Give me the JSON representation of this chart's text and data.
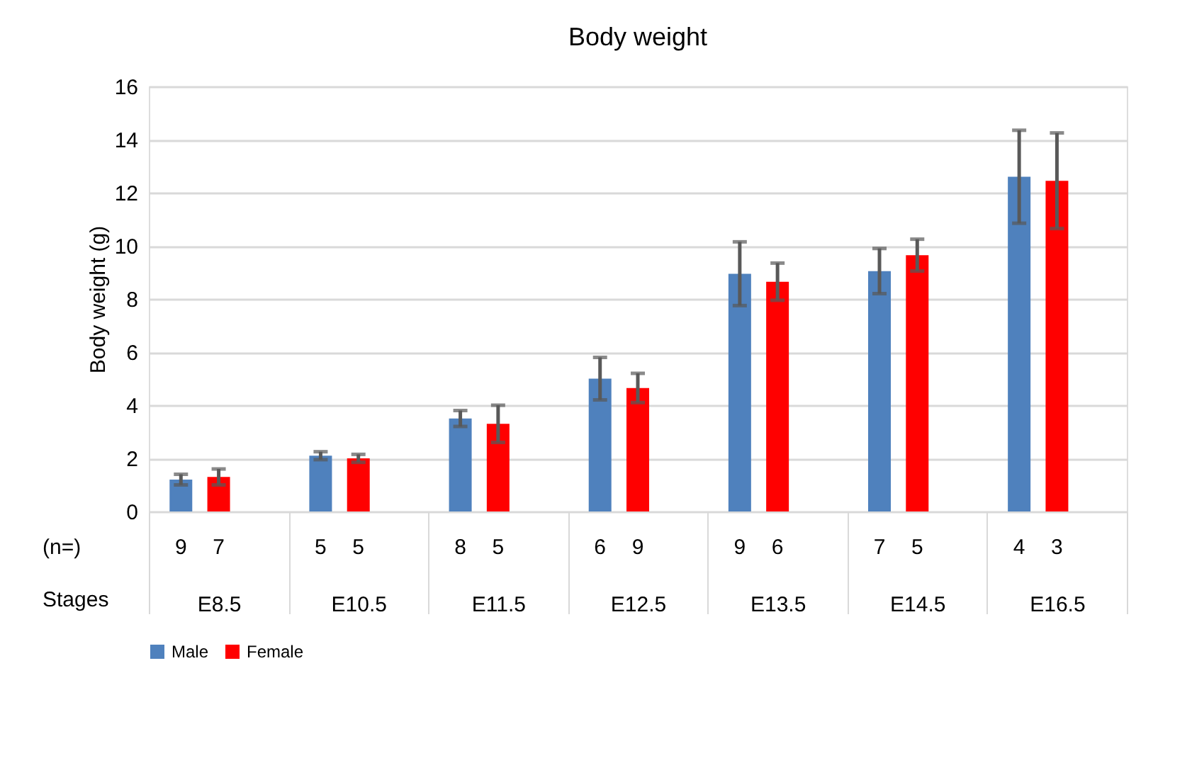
{
  "chart_data": {
    "type": "bar",
    "title": "Body weight",
    "ylabel": "Body weight (g)",
    "xlabel": "Stages",
    "categories": [
      "E8.5",
      "E10.5",
      "E11.5",
      "E12.5",
      "E13.5",
      "E14.5",
      "E16.5"
    ],
    "series": [
      {
        "name": "Male",
        "color": "#4f81bd",
        "values": [
          1.2,
          2.1,
          3.5,
          5.0,
          8.95,
          9.05,
          12.6
        ],
        "errors": [
          0.2,
          0.15,
          0.3,
          0.8,
          1.2,
          0.85,
          1.75
        ]
      },
      {
        "name": "Female",
        "color": "#ff0000",
        "values": [
          1.3,
          2.0,
          3.3,
          4.65,
          8.65,
          9.65,
          12.45
        ],
        "errors": [
          0.3,
          0.15,
          0.7,
          0.55,
          0.7,
          0.6,
          1.8
        ]
      }
    ],
    "ylim": [
      0,
      16
    ],
    "yticks": [
      0,
      2,
      4,
      6,
      8,
      10,
      12,
      14,
      16
    ],
    "grid": "y",
    "legend": "bottom",
    "annotations": [
      "(n=)",
      "9",
      "7",
      "5",
      "5",
      "8",
      "5",
      "6",
      "9",
      "9",
      "6",
      "7",
      "5",
      "4",
      "3"
    ]
  }
}
